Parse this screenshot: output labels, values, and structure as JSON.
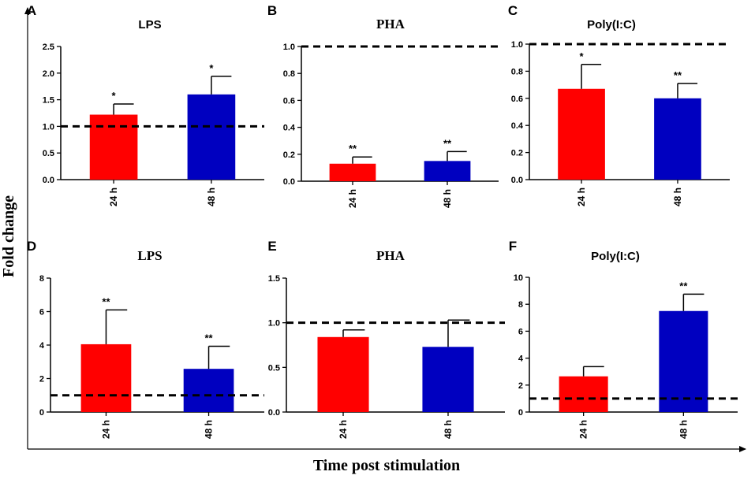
{
  "figure": {
    "ylabel": "Fold change",
    "xlabel": "Time post stimulation",
    "colors": {
      "series_24h": "#ff0000",
      "series_48h": "#0000c0",
      "axis": "#000000"
    }
  },
  "chart_data": [
    {
      "panel": "A",
      "title": "LPS",
      "title_font": "sans",
      "type": "bar",
      "categories": [
        "24 h",
        "48 h"
      ],
      "values": [
        1.22,
        1.6
      ],
      "errors": [
        0.2,
        0.34
      ],
      "annotations": [
        "*",
        "*"
      ],
      "reference_line": 1.0,
      "ylim": [
        0,
        2.5
      ],
      "yticks": [
        "0.0",
        "0.5",
        "1.0",
        "1.5",
        "2.0",
        "2.5"
      ]
    },
    {
      "panel": "B",
      "title": "PHA",
      "title_font": "serif",
      "type": "bar",
      "categories": [
        "24 h",
        "48 h"
      ],
      "values": [
        0.13,
        0.15
      ],
      "errors": [
        0.05,
        0.07
      ],
      "annotations": [
        "**",
        "**"
      ],
      "reference_line": 1.0,
      "ylim": [
        0,
        1.0
      ],
      "yticks": [
        "0.0",
        "0.2",
        "0.4",
        "0.6",
        "0.8",
        "1.0"
      ]
    },
    {
      "panel": "C",
      "title": "Poly(I:C)",
      "title_font": "sans",
      "type": "bar",
      "categories": [
        "24 h",
        "48 h"
      ],
      "values": [
        0.67,
        0.6
      ],
      "errors": [
        0.18,
        0.11
      ],
      "annotations": [
        "*",
        "**"
      ],
      "reference_line": 1.0,
      "ylim": [
        0,
        1.0
      ],
      "yticks": [
        "0.0",
        "0.2",
        "0.4",
        "0.6",
        "0.8",
        "1.0"
      ]
    },
    {
      "panel": "D",
      "title": "LPS",
      "title_font": "serif",
      "type": "bar",
      "categories": [
        "24 h",
        "48 h"
      ],
      "values": [
        4.05,
        2.58
      ],
      "errors": [
        2.05,
        1.35
      ],
      "annotations": [
        "**",
        "**"
      ],
      "reference_line": 1.0,
      "ylim": [
        0,
        8
      ],
      "yticks": [
        "0",
        "2",
        "4",
        "6",
        "8"
      ]
    },
    {
      "panel": "E",
      "title": "PHA",
      "title_font": "serif",
      "type": "bar",
      "categories": [
        "24 h",
        "48 h"
      ],
      "values": [
        0.84,
        0.73
      ],
      "errors": [
        0.08,
        0.3
      ],
      "annotations": [
        "",
        ""
      ],
      "reference_line": 1.0,
      "ylim": [
        0,
        1.5
      ],
      "yticks": [
        "0.0",
        "0.5",
        "1.0",
        "1.5"
      ]
    },
    {
      "panel": "F",
      "title": "Poly(I:C)",
      "title_font": "sans",
      "type": "bar",
      "categories": [
        "24 h",
        "48 h"
      ],
      "values": [
        2.65,
        7.5
      ],
      "errors": [
        0.72,
        1.25
      ],
      "annotations": [
        "",
        "**"
      ],
      "reference_line": 1.0,
      "ylim": [
        0,
        10
      ],
      "yticks": [
        "0",
        "2",
        "4",
        "6",
        "8",
        "10"
      ]
    }
  ]
}
